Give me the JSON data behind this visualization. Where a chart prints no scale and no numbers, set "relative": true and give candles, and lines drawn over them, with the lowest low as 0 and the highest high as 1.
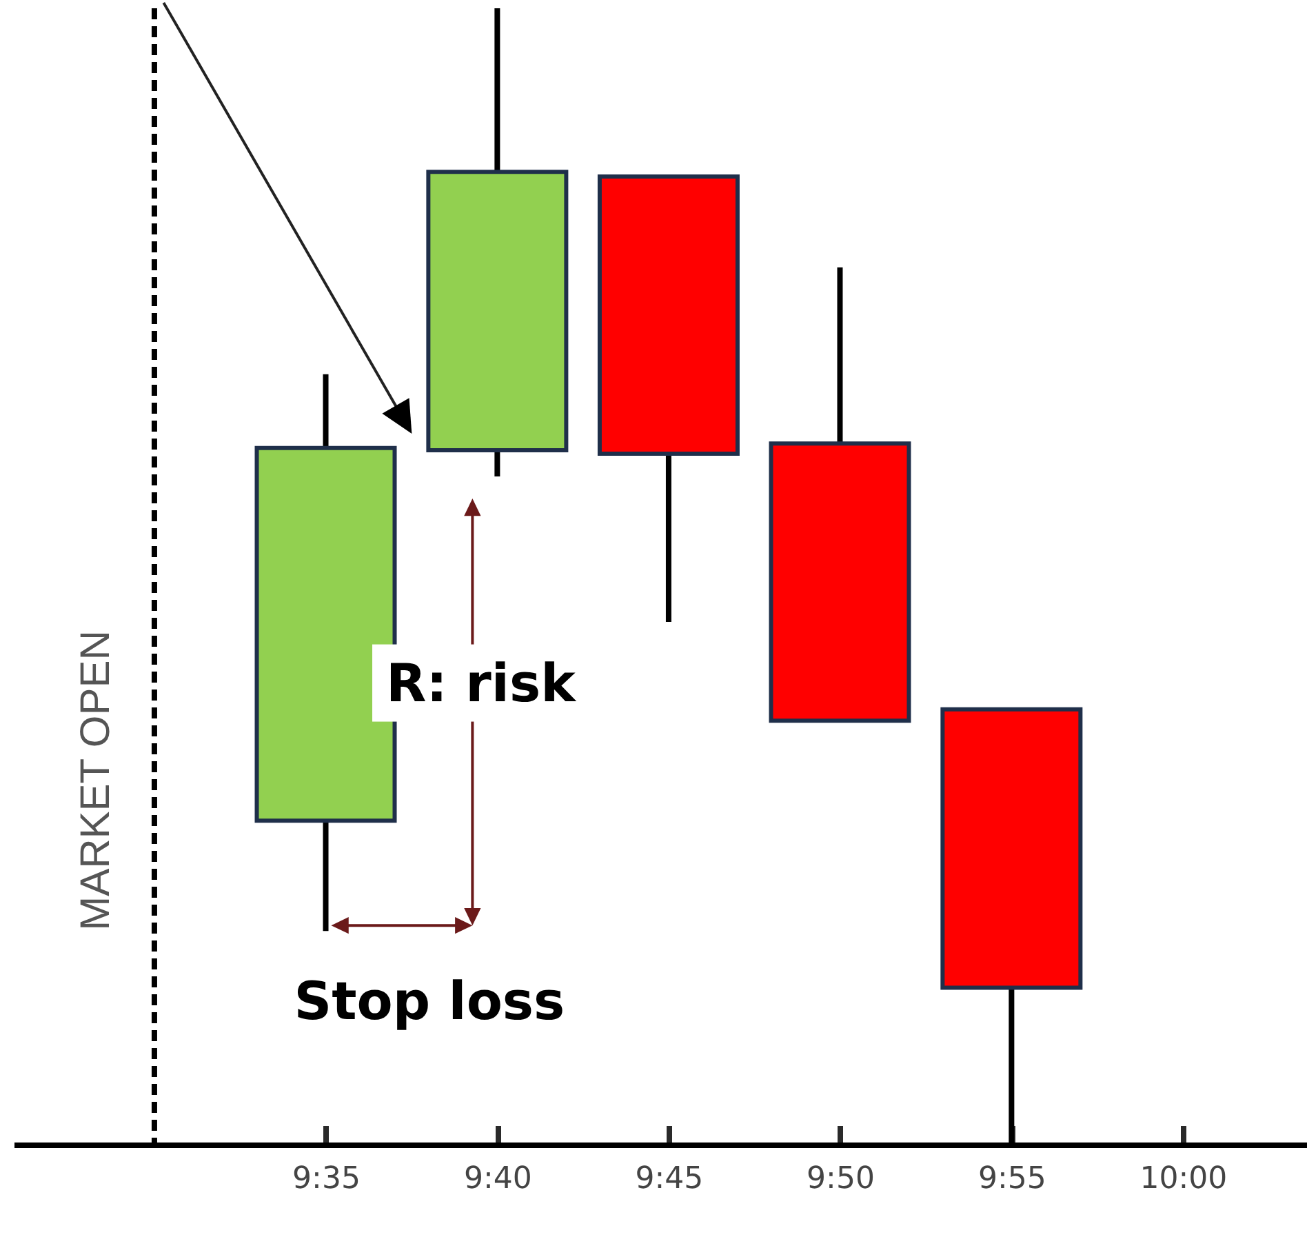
{
  "chart_data": {
    "type": "candlestick",
    "relative": true,
    "tick_labels": "x",
    "x": [
      9.5833,
      9.6667,
      9.75,
      9.8333,
      9.9167
    ],
    "ohlc": [
      [
        0.285,
        0.678,
        0.188,
        0.613
      ],
      [
        0.611,
        1,
        0.588,
        0.856
      ],
      [
        0.852,
        0.852,
        0.46,
        0.608
      ],
      [
        0.617,
        0.772,
        0.373,
        0.373
      ],
      [
        0.383,
        0.383,
        0,
        0.138
      ]
    ],
    "colors": [
      "#92d050",
      "#92d050",
      "#ff0000",
      "#ff0000",
      "#ff0000"
    ],
    "xlim": [
      9.435,
      10.057
    ],
    "xticks": [
      {
        "value": 9.5833,
        "label": "9:35"
      },
      {
        "value": 9.6667,
        "label": "9:40"
      },
      {
        "value": 9.75,
        "label": "9:45"
      },
      {
        "value": 9.8333,
        "label": "9:50"
      },
      {
        "value": 9.9167,
        "label": "9:55"
      },
      {
        "value": 10,
        "label": "10:00"
      }
    ],
    "ref_lines": [
      {
        "axis": "x",
        "value": 9.5,
        "label": "MARKET OPEN",
        "line_style": "dashed",
        "color": "#000000"
      }
    ],
    "annotations": [
      "R: risk",
      "Stop loss"
    ]
  }
}
